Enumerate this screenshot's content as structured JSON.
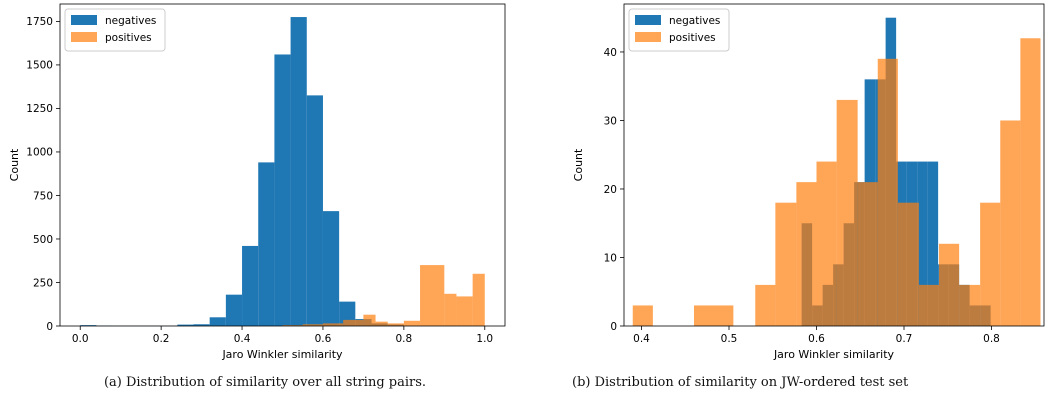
{
  "chart_data": [
    {
      "type": "histogram",
      "xlabel": "Jaro Winkler similarity",
      "ylabel": "Count",
      "xlim": [
        -0.05,
        1.05
      ],
      "ylim": [
        0,
        1850
      ],
      "x_ticks": [
        0.0,
        0.2,
        0.4,
        0.6,
        0.8,
        1.0
      ],
      "x_tick_labels": [
        "0.0",
        "0.2",
        "0.4",
        "0.6",
        "0.8",
        "1.0"
      ],
      "y_ticks": [
        0,
        250,
        500,
        750,
        1000,
        1250,
        1500,
        1750
      ],
      "y_tick_labels": [
        "0",
        "250",
        "500",
        "750",
        "1000",
        "1250",
        "1500",
        "1750"
      ],
      "legend": {
        "location": "upper left",
        "entries": [
          "negatives",
          "positives"
        ]
      },
      "series": [
        {
          "name": "negatives",
          "color": "#1f77b4",
          "opacity": 1,
          "bins": [
            [
              0.0,
              0.04,
              5
            ],
            [
              0.04,
              0.08,
              2
            ],
            [
              0.08,
              0.12,
              1
            ],
            [
              0.12,
              0.16,
              1
            ],
            [
              0.16,
              0.2,
              1
            ],
            [
              0.2,
              0.24,
              1
            ],
            [
              0.24,
              0.28,
              8
            ],
            [
              0.28,
              0.32,
              10
            ],
            [
              0.32,
              0.36,
              50
            ],
            [
              0.36,
              0.4,
              180
            ],
            [
              0.4,
              0.44,
              460
            ],
            [
              0.44,
              0.48,
              940
            ],
            [
              0.48,
              0.52,
              1560
            ],
            [
              0.52,
              0.56,
              1775
            ],
            [
              0.56,
              0.6,
              1325
            ],
            [
              0.6,
              0.64,
              660
            ],
            [
              0.64,
              0.68,
              140
            ],
            [
              0.68,
              0.72,
              40
            ],
            [
              0.72,
              0.76,
              15
            ],
            [
              0.76,
              0.8,
              8
            ]
          ]
        },
        {
          "name": "positives",
          "color": "#ff7f0e",
          "opacity": 0.7,
          "bins": [
            [
              0.5,
              0.55,
              5
            ],
            [
              0.55,
              0.6,
              10
            ],
            [
              0.6,
              0.65,
              15
            ],
            [
              0.65,
              0.7,
              35
            ],
            [
              0.7,
              0.73,
              65
            ],
            [
              0.73,
              0.76,
              25
            ],
            [
              0.76,
              0.8,
              15
            ],
            [
              0.8,
              0.84,
              30
            ],
            [
              0.84,
              0.9,
              350
            ],
            [
              0.9,
              0.93,
              185
            ],
            [
              0.93,
              0.97,
              170
            ],
            [
              0.97,
              1.0,
              300
            ]
          ]
        }
      ]
    },
    {
      "type": "histogram",
      "xlabel": "Jaro Winkler similarity",
      "ylabel": "Count",
      "xlim": [
        0.38,
        0.86
      ],
      "ylim": [
        0,
        47
      ],
      "x_ticks": [
        0.4,
        0.5,
        0.6,
        0.7,
        0.8
      ],
      "x_tick_labels": [
        "0.4",
        "0.5",
        "0.6",
        "0.7",
        "0.8"
      ],
      "y_ticks": [
        0,
        10,
        20,
        30,
        40
      ],
      "y_tick_labels": [
        "0",
        "10",
        "20",
        "30",
        "40"
      ],
      "legend": {
        "location": "upper left",
        "entries": [
          "negatives",
          "positives"
        ]
      },
      "series": [
        {
          "name": "negatives",
          "color": "#1f77b4",
          "opacity": 1,
          "bins": [
            [
              0.583,
              0.595,
              15
            ],
            [
              0.595,
              0.607,
              3
            ],
            [
              0.607,
              0.619,
              6
            ],
            [
              0.619,
              0.631,
              9
            ],
            [
              0.631,
              0.643,
              15
            ],
            [
              0.643,
              0.655,
              21
            ],
            [
              0.655,
              0.667,
              36
            ],
            [
              0.667,
              0.679,
              36
            ],
            [
              0.679,
              0.691,
              45
            ],
            [
              0.691,
              0.703,
              24
            ],
            [
              0.703,
              0.715,
              24
            ],
            [
              0.715,
              0.727,
              24
            ],
            [
              0.727,
              0.739,
              24
            ],
            [
              0.739,
              0.751,
              9
            ],
            [
              0.751,
              0.763,
              9
            ],
            [
              0.763,
              0.775,
              6
            ],
            [
              0.775,
              0.787,
              3
            ],
            [
              0.787,
              0.799,
              3
            ]
          ]
        },
        {
          "name": "positives",
          "color": "#ff7f0e",
          "opacity": 0.7,
          "bins": [
            [
              0.39,
              0.413,
              3
            ],
            [
              0.46,
              0.505,
              3
            ],
            [
              0.53,
              0.553,
              6
            ],
            [
              0.553,
              0.577,
              18
            ],
            [
              0.577,
              0.6,
              21
            ],
            [
              0.6,
              0.623,
              24
            ],
            [
              0.623,
              0.647,
              33
            ],
            [
              0.647,
              0.67,
              21
            ],
            [
              0.67,
              0.68,
              39
            ],
            [
              0.68,
              0.693,
              39
            ],
            [
              0.693,
              0.717,
              18
            ],
            [
              0.717,
              0.74,
              6
            ],
            [
              0.74,
              0.763,
              12
            ],
            [
              0.763,
              0.787,
              6
            ],
            [
              0.787,
              0.81,
              18
            ],
            [
              0.81,
              0.833,
              30
            ],
            [
              0.833,
              0.856,
              42
            ]
          ]
        }
      ]
    }
  ],
  "captions": [
    "(a) Distribution of similarity over all string pairs.",
    "(b) Distribution of similarity on JW-ordered test set"
  ]
}
